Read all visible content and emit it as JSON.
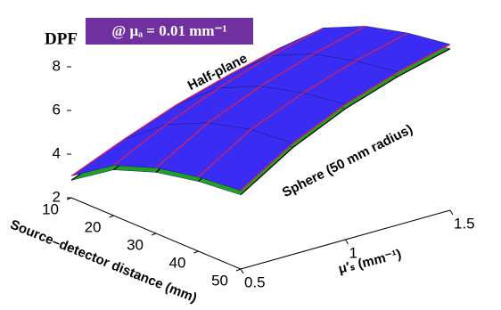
{
  "chart_data": {
    "type": "surface",
    "annotation": "@ μₐ = 0.01 mm⁻¹",
    "zlabel": "DPF",
    "xlabel": "Source–detector distance (mm)",
    "ylabel": "μ′ₛ (mm⁻¹)",
    "x": [
      10,
      20,
      30,
      40,
      50
    ],
    "y": [
      0.5,
      0.75,
      1,
      1.25,
      1.5
    ],
    "xlim": [
      10,
      50
    ],
    "xticks": [
      10,
      20,
      30,
      40,
      50
    ],
    "ylim": [
      0.5,
      1.5
    ],
    "yticks": [
      0.5,
      {
        "value": 1,
        "label": "1"
      },
      1.5
    ],
    "zlim": [
      2,
      10
    ],
    "zticks": [
      2,
      4,
      6,
      8
    ],
    "grid": true,
    "series": [
      {
        "name": "Sphere (50 mm radius)",
        "color": "#1fa31f",
        "edge": "#000000",
        "values": [
          [
            2.8,
            4.1,
            4.8,
            5.2,
            5.4
          ],
          [
            3.8,
            5.3,
            6.2,
            6.7,
            6.9
          ],
          [
            4.7,
            6.3,
            7.2,
            7.7,
            8.0
          ],
          [
            5.4,
            7.1,
            8.0,
            8.5,
            8.8
          ],
          [
            6.0,
            7.7,
            8.6,
            9.1,
            9.4
          ]
        ]
      },
      {
        "name": "Half-plane",
        "color": "#3a2cf2",
        "edge": "#e0204a",
        "values": [
          [
            3.0,
            4.3,
            5.0,
            5.4,
            5.6
          ],
          [
            4.0,
            5.5,
            6.4,
            6.9,
            7.1
          ],
          [
            4.9,
            6.5,
            7.4,
            7.9,
            8.2
          ],
          [
            5.6,
            7.3,
            8.2,
            8.7,
            9.0
          ],
          [
            6.2,
            7.9,
            8.8,
            9.3,
            9.6
          ]
        ]
      }
    ]
  }
}
